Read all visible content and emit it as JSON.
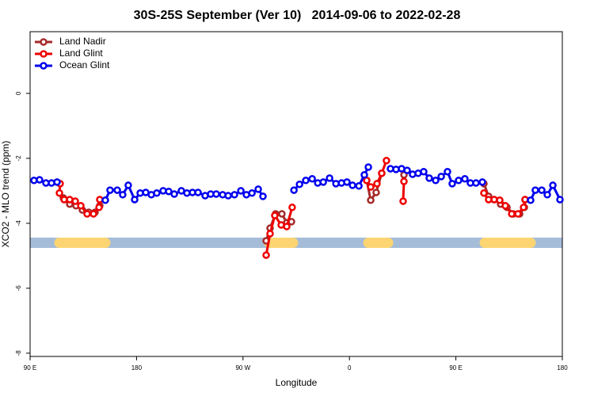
{
  "chart_data": {
    "type": "line",
    "title": "30S-25S September (Ver 10)   2014-09-06 to 2022-02-28",
    "xlabel": "Longitude",
    "ylabel": "XCO2 - MLO trend (ppm)",
    "xlim": [
      90,
      540
    ],
    "xticks": [
      {
        "value": 90,
        "label": "90 E"
      },
      180,
      {
        "value": 270,
        "label": "90 W"
      },
      {
        "value": 360,
        "label": "0"
      },
      {
        "value": 450,
        "label": "90 E"
      },
      {
        "value": 540,
        "label": "180"
      }
    ],
    "ylim": [
      -8.1,
      1.9
    ],
    "yticks": [
      0,
      -2,
      -4,
      -6,
      -8
    ],
    "legend": "top-left",
    "band": {
      "y": -4.6,
      "color": "#a5bcd9",
      "land_color": "#fcd572",
      "land": [
        [
          114.8,
          153.6
        ],
        [
          292.2,
          312.3
        ],
        [
          376,
          392.7
        ],
        [
          474.4,
          513.2
        ]
      ]
    },
    "series": [
      {
        "name": "Land Nadir",
        "color": "#a52a2a",
        "x": [
          118.1,
          123.5,
          128.8,
          134.2,
          139.6,
          144.9,
          148.9,
          null,
          289.6,
          292.9,
          297.6,
          302.9,
          307,
          311,
          null,
          374.6,
          378,
          382.6,
          387.3,
          null,
          406.1,
          null,
          473.7,
          477.7,
          482.4,
          487.8,
          493.2,
          498.5,
          503.9,
          507.9,
          508.5
        ],
        "values": [
          -3.22,
          -3.41,
          -3.46,
          -3.59,
          -3.66,
          -3.66,
          -3.46,
          null,
          -4.54,
          -4.15,
          -3.71,
          -3.71,
          -3.98,
          -3.95,
          null,
          -2.68,
          -3.29,
          -3.05,
          -2.46,
          null,
          -2.51,
          null,
          -2.78,
          -3.17,
          -3.27,
          -3.41,
          -3.51,
          -3.71,
          -3.71,
          -3.51,
          -3.27
        ]
      },
      {
        "name": "Land Glint",
        "color": "#ee0000",
        "x": [
          115.4,
          114.8,
          118.8,
          123.5,
          128.2,
          132.9,
          138.2,
          143.6,
          148.3,
          148.9,
          null,
          289.6,
          292.9,
          296.9,
          302.3,
          307,
          311.6,
          null,
          374.6,
          378,
          383.3,
          387.3,
          391.3,
          null,
          405.4,
          406.1,
          null,
          473.7,
          477.7,
          482.4,
          487.1,
          491.8,
          497.2,
          502.5,
          507.2,
          508.5
        ],
        "values": [
          -2.78,
          -3.07,
          -3.27,
          -3.27,
          -3.32,
          -3.46,
          -3.71,
          -3.71,
          -3.51,
          -3.27,
          null,
          -4.98,
          -4.32,
          -3.76,
          -4.05,
          -4.1,
          -3.51,
          null,
          -2.68,
          -2.88,
          -2.78,
          -2.46,
          -2.07,
          null,
          -3.32,
          -2.71,
          null,
          -3.07,
          -3.27,
          -3.27,
          -3.29,
          -3.46,
          -3.71,
          -3.71,
          -3.51,
          -3.27
        ]
      },
      {
        "name": "Ocean Glint",
        "color": "#0000ee",
        "x": [
          93.3,
          98,
          103.4,
          108.1,
          112.8,
          null,
          153.6,
          157.6,
          163.7,
          168.3,
          173,
          178.4,
          183.1,
          187.8,
          192.5,
          197.1,
          202.5,
          207.2,
          211.9,
          217.9,
          222.6,
          227.3,
          232,
          238,
          242.7,
          247.4,
          252.8,
          257.5,
          262.8,
          268.2,
          272.9,
          277.6,
          282.9,
          286.9,
          null,
          313.1,
          317.8,
          323.1,
          328.5,
          333.2,
          337.9,
          343.2,
          348.6,
          353.3,
          357.9,
          362.6,
          368,
          372.6,
          376,
          null,
          394.7,
          399.4,
          404.1,
          408.8,
          413.4,
          418.1,
          422.8,
          427.5,
          432.9,
          437.6,
          442.9,
          446.9,
          452.3,
          457.6,
          462.3,
          467,
          472.4,
          null,
          513.2,
          517.2,
          522.6,
          527.3,
          532,
          538
        ],
        "values": [
          -2.68,
          -2.66,
          -2.76,
          -2.76,
          -2.73,
          null,
          -3.29,
          -2.98,
          -2.98,
          -3.12,
          -2.83,
          -3.27,
          -3.07,
          -3.05,
          -3.12,
          -3.07,
          -3.0,
          -3.02,
          -3.1,
          -3.0,
          -3.07,
          -3.05,
          -3.05,
          -3.15,
          -3.1,
          -3.1,
          -3.12,
          -3.15,
          -3.12,
          -3.0,
          -3.12,
          -3.07,
          -2.95,
          -3.17,
          null,
          -2.98,
          -2.8,
          -2.68,
          -2.63,
          -2.76,
          -2.73,
          -2.61,
          -2.78,
          -2.76,
          -2.73,
          -2.83,
          -2.85,
          -2.51,
          -2.27,
          null,
          -2.32,
          -2.34,
          -2.32,
          -2.37,
          -2.49,
          -2.46,
          -2.41,
          -2.61,
          -2.68,
          -2.56,
          -2.41,
          -2.78,
          -2.68,
          -2.63,
          -2.76,
          -2.76,
          -2.73,
          null,
          -3.29,
          -2.98,
          -2.98,
          -3.12,
          -2.83,
          -3.27
        ]
      }
    ]
  }
}
